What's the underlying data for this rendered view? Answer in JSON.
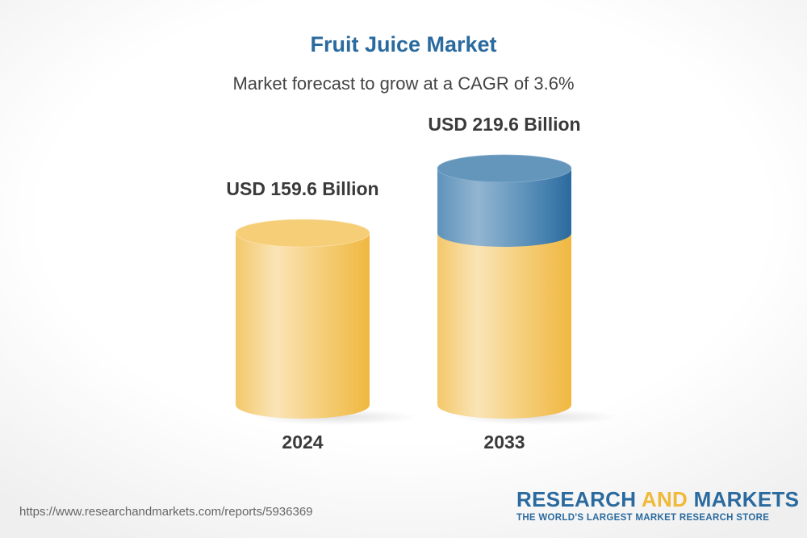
{
  "chart_data": {
    "type": "bar",
    "title": "Fruit Juice Market",
    "subtitle": "Market forecast to grow at a CAGR of 3.6%",
    "categories": [
      "2024",
      "2033"
    ],
    "values": [
      159.6,
      219.6
    ],
    "data_labels": [
      "USD 159.6 Billion",
      "USD 219.6 Billion"
    ],
    "unit": "USD Billion",
    "style": "3d-cylinder",
    "colors": {
      "base": "#f2c661",
      "growth": "#2a6a9e"
    }
  },
  "footer": {
    "url": "https://www.researchandmarkets.com/reports/5936369",
    "logo_part1": "RESEARCH ",
    "logo_part2": "AND",
    "logo_part3": " MARKETS",
    "tagline": "THE WORLD'S LARGEST MARKET RESEARCH STORE"
  }
}
